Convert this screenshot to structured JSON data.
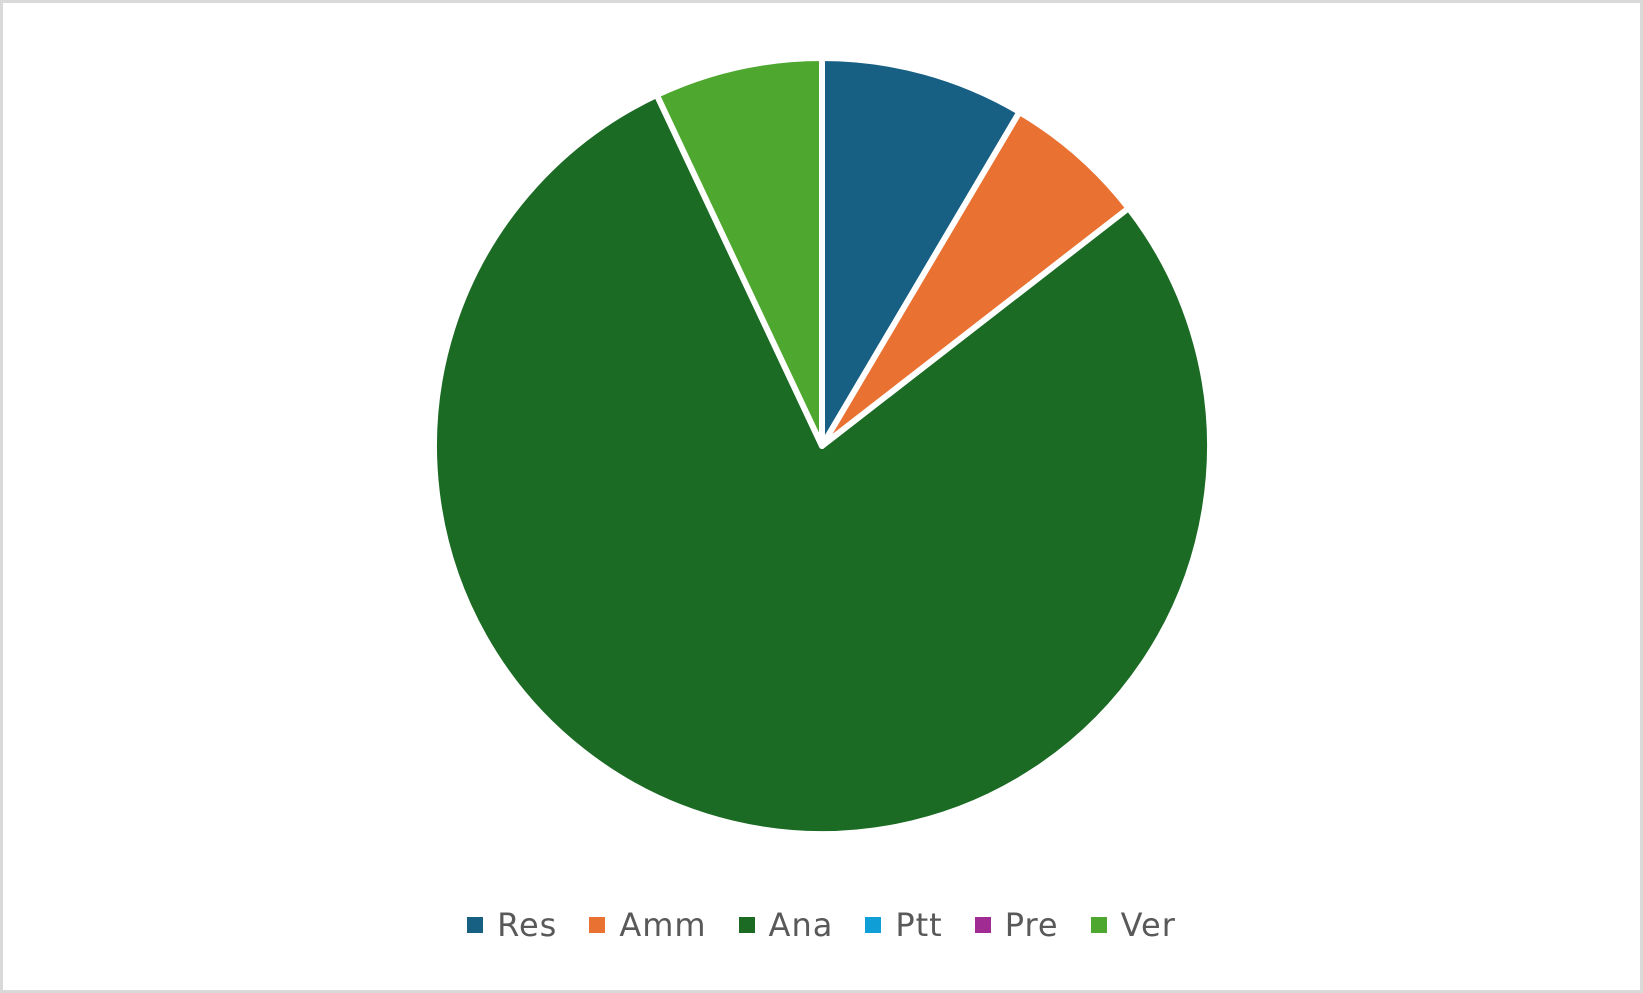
{
  "chart_data": {
    "type": "pie",
    "title": "",
    "categories": [
      "Res",
      "Amm",
      "Ana",
      "Ptt",
      "Pre",
      "Ver"
    ],
    "values": [
      8.5,
      6.0,
      78.5,
      0,
      0,
      7.0
    ],
    "colors": [
      "#175f83",
      "#e97132",
      "#1b6b24",
      "#0f9ed5",
      "#a02b93",
      "#4ea72e"
    ],
    "start_angle_deg": 0,
    "direction": "clockwise",
    "legend_position": "bottom",
    "data_labels": false
  }
}
